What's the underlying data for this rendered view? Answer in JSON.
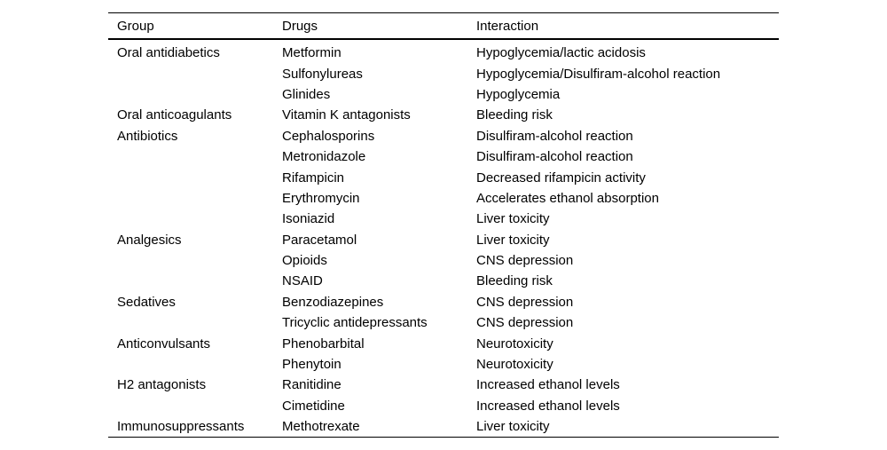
{
  "page": {
    "background": "#ffffff",
    "text_color": "#000000",
    "rule_color": "#000000"
  },
  "chart_data": {
    "type": "table",
    "columns": [
      "Group",
      "Drugs",
      "Interaction"
    ],
    "rows": [
      [
        "Oral antidiabetics",
        "Metformin",
        "Hypoglycemia/lactic acidosis"
      ],
      [
        "",
        "Sulfonylureas",
        "Hypoglycemia/Disulfiram-alcohol reaction"
      ],
      [
        "",
        "Glinides",
        "Hypoglycemia"
      ],
      [
        "Oral anticoagulants",
        "Vitamin K antagonists",
        "Bleeding risk"
      ],
      [
        "Antibiotics",
        "Cephalosporins",
        "Disulfiram-alcohol reaction"
      ],
      [
        "",
        "Metronidazole",
        "Disulfiram-alcohol reaction"
      ],
      [
        "",
        "Rifampicin",
        "Decreased rifampicin activity"
      ],
      [
        "",
        "Erythromycin",
        "Accelerates ethanol absorption"
      ],
      [
        "",
        "Isoniazid",
        "Liver toxicity"
      ],
      [
        "Analgesics",
        "Paracetamol",
        "Liver toxicity"
      ],
      [
        "",
        "Opioids",
        "CNS depression"
      ],
      [
        "",
        "NSAID",
        "Bleeding risk"
      ],
      [
        "Sedatives",
        "Benzodiazepines",
        "CNS depression"
      ],
      [
        "",
        "Tricyclic antidepressants",
        "CNS depression"
      ],
      [
        "Anticonvulsants",
        "Phenobarbital",
        "Neurotoxicity"
      ],
      [
        "",
        "Phenytoin",
        "Neurotoxicity"
      ],
      [
        "H2 antagonists",
        "Ranitidine",
        "Increased ethanol levels"
      ],
      [
        "",
        "Cimetidine",
        "Increased ethanol levels"
      ],
      [
        "Immunosuppressants",
        "Methotrexate",
        "Liver toxicity"
      ]
    ]
  }
}
